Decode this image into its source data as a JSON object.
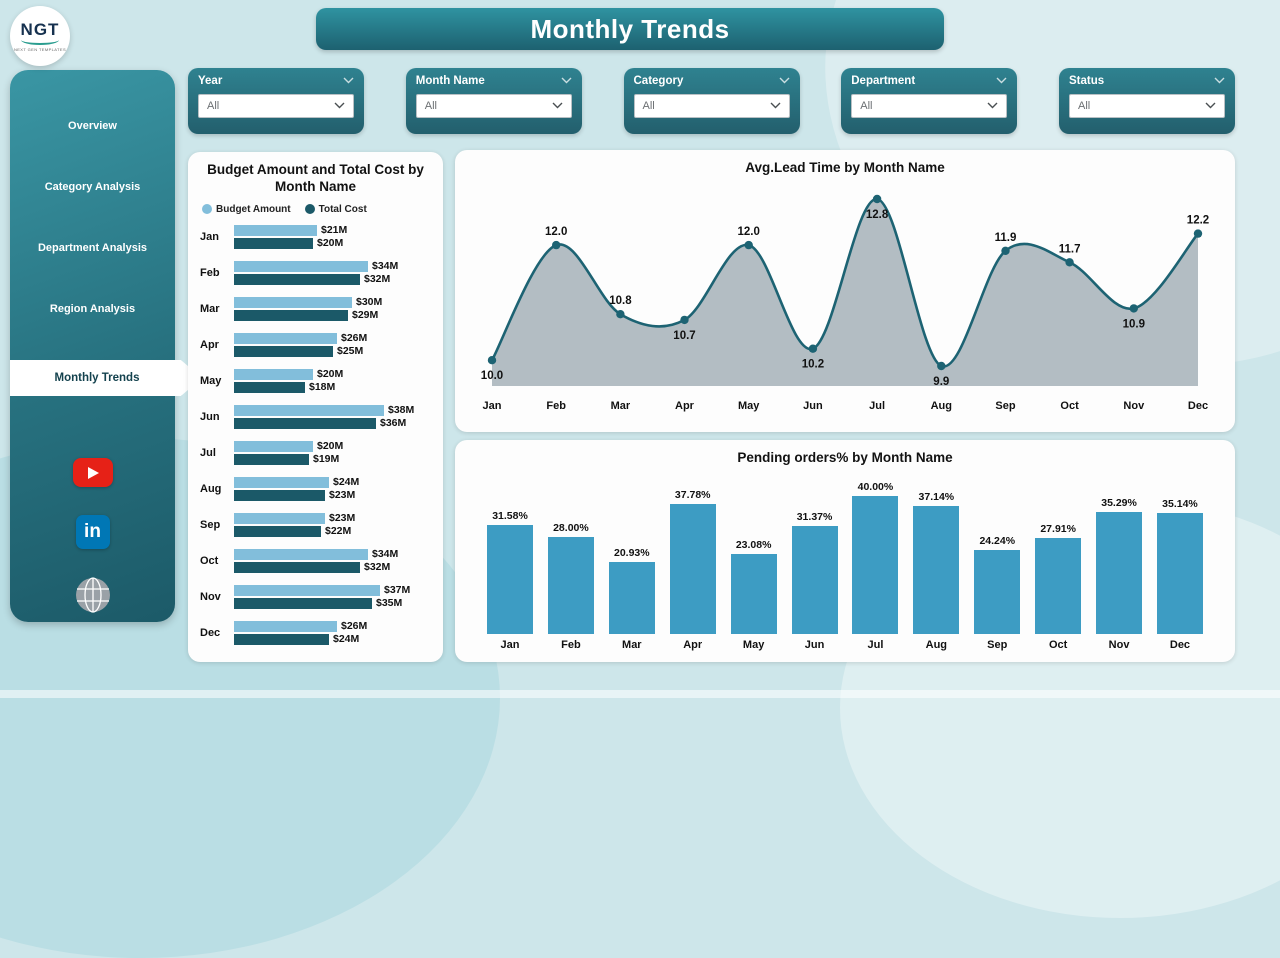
{
  "app": {
    "title": "Monthly Trends"
  },
  "logo": {
    "text": "NGT",
    "subtext": "NEXT GEN TEMPLATES"
  },
  "filters": [
    {
      "label": "Year",
      "value": "All"
    },
    {
      "label": "Month Name",
      "value": "All"
    },
    {
      "label": "Category",
      "value": "All"
    },
    {
      "label": "Department",
      "value": "All"
    },
    {
      "label": "Status",
      "value": "All"
    }
  ],
  "sidebar": {
    "items": [
      {
        "label": "Overview",
        "active": false
      },
      {
        "label": "Category Analysis",
        "active": false
      },
      {
        "label": "Department Analysis",
        "active": false
      },
      {
        "label": "Region Analysis",
        "active": false
      },
      {
        "label": "Monthly Trends",
        "active": true
      }
    ],
    "social": [
      "youtube",
      "linkedin",
      "web"
    ]
  },
  "colors": {
    "background": "#cde6ea",
    "teal_dark": "#235f6d",
    "teal_light": "#35929f"
  },
  "chart_data": [
    {
      "type": "bar",
      "orientation": "horizontal",
      "title": "Budget Amount and Total Cost by Month Name",
      "categories": [
        "Jan",
        "Feb",
        "Mar",
        "Apr",
        "May",
        "Jun",
        "Jul",
        "Aug",
        "Sep",
        "Oct",
        "Nov",
        "Dec"
      ],
      "series": [
        {
          "name": "Budget Amount",
          "color": "#82bedb",
          "values": [
            21,
            34,
            30,
            26,
            20,
            38,
            20,
            24,
            23,
            34,
            37,
            26
          ],
          "labels": [
            "$21M",
            "$34M",
            "$30M",
            "$26M",
            "$20M",
            "$38M",
            "$20M",
            "$24M",
            "$23M",
            "$34M",
            "$37M",
            "$26M"
          ]
        },
        {
          "name": "Total Cost",
          "color": "#1b5968",
          "values": [
            20,
            32,
            29,
            25,
            18,
            36,
            19,
            23,
            22,
            32,
            35,
            24
          ],
          "labels": [
            "$20M",
            "$32M",
            "$29M",
            "$25M",
            "$18M",
            "$36M",
            "$19M",
            "$23M",
            "$22M",
            "$32M",
            "$35M",
            "$24M"
          ]
        }
      ],
      "xlim": [
        0,
        40
      ],
      "legend_position": "top"
    },
    {
      "type": "area",
      "title": "Avg.Lead Time by Month Name",
      "categories": [
        "Jan",
        "Feb",
        "Mar",
        "Apr",
        "May",
        "Jun",
        "Jul",
        "Aug",
        "Sep",
        "Oct",
        "Nov",
        "Dec"
      ],
      "values": [
        10.0,
        12.0,
        10.8,
        10.7,
        12.0,
        10.2,
        12.8,
        9.9,
        11.9,
        11.7,
        10.9,
        12.2
      ],
      "labels": [
        "10.0",
        "12.0",
        "10.8",
        "10.7",
        "12.0",
        "10.2",
        "12.8",
        "9.9",
        "11.9",
        "11.7",
        "10.9",
        "12.2"
      ],
      "label_positions": [
        "below",
        "above",
        "above",
        "below",
        "above",
        "below",
        "below",
        "below",
        "above",
        "above",
        "below",
        "above"
      ],
      "ylim": [
        9.5,
        13.0
      ],
      "line_color": "#1d6373",
      "fill_color": "#b3bdc3",
      "marker_color": "#1d6373",
      "grid": false
    },
    {
      "type": "bar",
      "title": "Pending orders% by Month Name",
      "categories": [
        "Jan",
        "Feb",
        "Mar",
        "Apr",
        "May",
        "Jun",
        "Jul",
        "Aug",
        "Sep",
        "Oct",
        "Nov",
        "Dec"
      ],
      "values": [
        31.58,
        28.0,
        20.93,
        37.78,
        23.08,
        31.37,
        40.0,
        37.14,
        24.24,
        27.91,
        35.29,
        35.14
      ],
      "labels": [
        "31.58%",
        "28.00%",
        "20.93%",
        "37.78%",
        "23.08%",
        "31.37%",
        "40.00%",
        "37.14%",
        "24.24%",
        "27.91%",
        "35.29%",
        "35.14%"
      ],
      "ylim": [
        0,
        45
      ],
      "bar_color": "#3d9cc3",
      "grid": false
    }
  ]
}
